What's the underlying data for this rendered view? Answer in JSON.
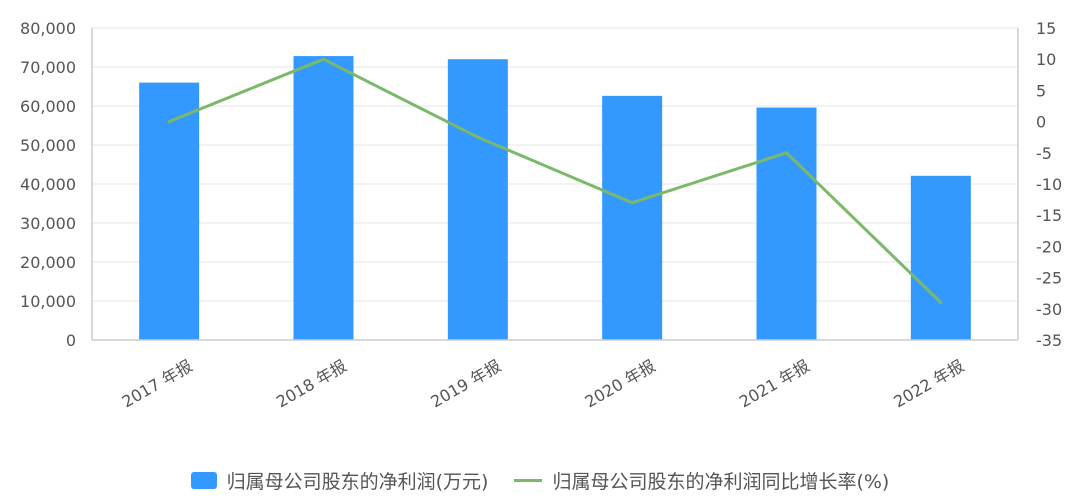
{
  "colors": {
    "bar": "#3399ff",
    "line": "#7cb86a",
    "grid": "#e6e6e6",
    "axis": "#cccccc",
    "text": "#555555"
  },
  "legend": {
    "bar_label": "归属母公司股东的净利润(万元)",
    "line_label": "归属母公司股东的净利润同比增长率(%)"
  },
  "chart_data": {
    "type": "bar",
    "categories": [
      "2017 年报",
      "2018 年报",
      "2019 年报",
      "2020 年报",
      "2021 年报",
      "2022 年报"
    ],
    "series": [
      {
        "name": "归属母公司股东的净利润(万元)",
        "type": "bar",
        "axis": "left",
        "values": [
          66000,
          72800,
          72000,
          62600,
          59600,
          42100
        ]
      },
      {
        "name": "归属母公司股东的净利润同比增长率(%)",
        "type": "line",
        "axis": "right",
        "values": [
          0,
          10,
          -2.5,
          -13,
          -5,
          -29
        ]
      }
    ],
    "y_left": {
      "min": 0,
      "max": 80000,
      "step": 10000,
      "tick_labels": [
        "0",
        "10,000",
        "20,000",
        "30,000",
        "40,000",
        "50,000",
        "60,000",
        "70,000",
        "80,000"
      ]
    },
    "y_right": {
      "min": -35,
      "max": 15,
      "step": 5,
      "tick_labels": [
        "-35",
        "-30",
        "-25",
        "-20",
        "-15",
        "-10",
        "-5",
        "0",
        "5",
        "10",
        "15"
      ]
    },
    "grid": true,
    "legend_position": "bottom"
  }
}
